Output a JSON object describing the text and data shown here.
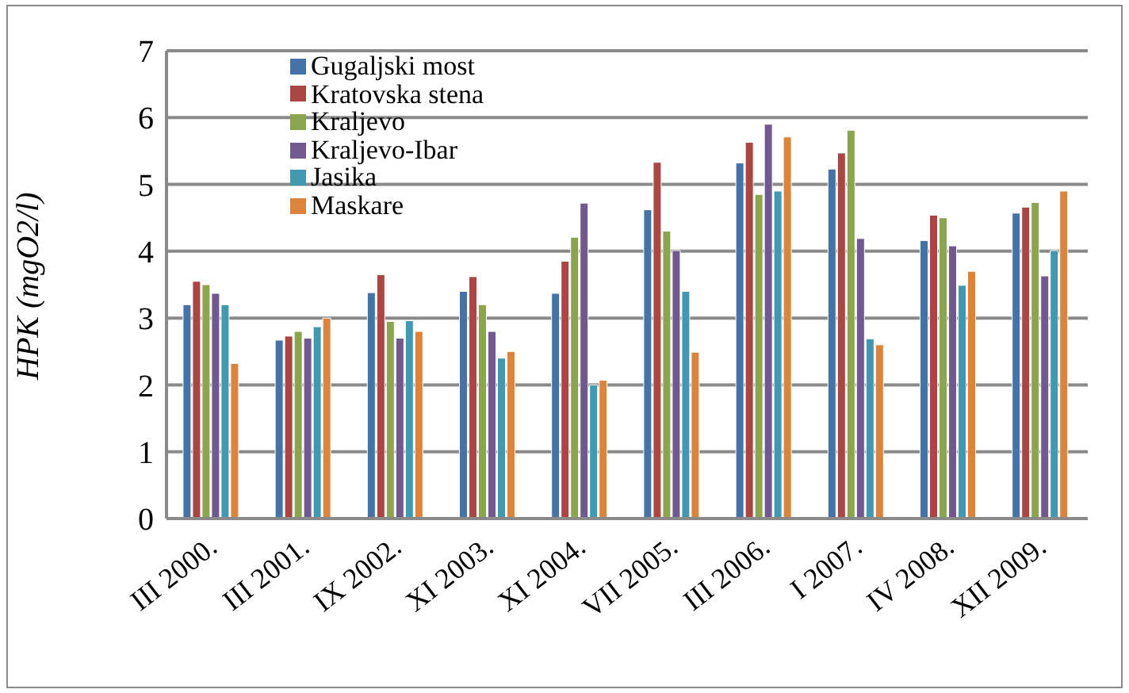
{
  "chart_data": {
    "type": "bar",
    "ylabel": "HPK (mgO2/l)",
    "categories": [
      "III 2000.",
      "III 2001.",
      "IX 2002.",
      "XI 2003.",
      "XI 2004.",
      "VII 2005.",
      "III 2006.",
      "I 2007.",
      "IV 2008.",
      "XII 2009."
    ],
    "series": [
      {
        "name": "Gugaljski most",
        "color": "#4572a7",
        "values": [
          3.2,
          2.67,
          3.38,
          3.4,
          3.37,
          4.62,
          5.32,
          5.23,
          4.16,
          4.57
        ]
      },
      {
        "name": "Kratovska stena",
        "color": "#aa4643",
        "values": [
          3.55,
          2.73,
          3.65,
          3.62,
          3.85,
          5.33,
          5.63,
          5.47,
          4.54,
          4.66
        ]
      },
      {
        "name": "Kraljevo",
        "color": "#89a54e",
        "values": [
          3.5,
          2.8,
          2.95,
          3.2,
          4.21,
          4.3,
          4.85,
          5.81,
          4.5,
          4.73
        ]
      },
      {
        "name": "Kraljevo-Ibar",
        "color": "#71588f",
        "values": [
          3.37,
          2.7,
          2.7,
          2.8,
          4.72,
          4.01,
          5.9,
          4.19,
          4.08,
          3.63
        ]
      },
      {
        "name": "Jasika",
        "color": "#4198af",
        "values": [
          3.2,
          2.87,
          2.96,
          2.4,
          2.0,
          3.4,
          4.9,
          2.69,
          3.49,
          4.01
        ]
      },
      {
        "name": "Maskare",
        "color": "#db843d",
        "values": [
          2.32,
          3.0,
          2.8,
          2.5,
          2.07,
          2.49,
          5.71,
          2.6,
          3.7,
          4.9
        ]
      }
    ],
    "ylim": [
      0,
      7
    ],
    "yticks": [
      0,
      1,
      2,
      3,
      4,
      5,
      6,
      7
    ],
    "grid": "y",
    "legend": "top left"
  }
}
